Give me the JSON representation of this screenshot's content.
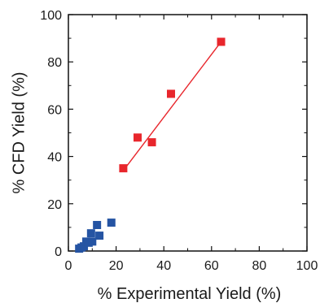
{
  "chart_data": {
    "type": "scatter",
    "xlabel": "% Experimental  Yield (%)",
    "ylabel": "% CFD Yield (%)",
    "xlim": [
      0,
      100
    ],
    "ylim": [
      0,
      100
    ],
    "xticks": [
      0,
      20,
      40,
      60,
      80,
      100
    ],
    "yticks": [
      0,
      20,
      40,
      60,
      80,
      100
    ],
    "grid": false,
    "series": [
      {
        "color": "#e8262c",
        "marker": "square",
        "x": [
          23,
          29,
          35,
          43,
          64
        ],
        "y": [
          35,
          48,
          46,
          66.5,
          88.5
        ],
        "trendline": {
          "x": [
            23,
            64
          ],
          "y": [
            34,
            88.5
          ]
        }
      },
      {
        "color": "#2554a3",
        "marker": "square",
        "x": [
          4.5,
          5.5,
          6.5,
          7.5,
          8.5,
          9.5,
          10,
          12,
          13,
          18
        ],
        "y": [
          1,
          1.5,
          2,
          4,
          3.5,
          7.5,
          4,
          11,
          6.5,
          12
        ]
      }
    ]
  }
}
